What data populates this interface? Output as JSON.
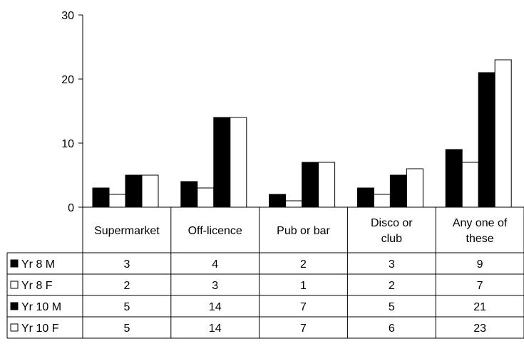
{
  "chart_data": {
    "type": "bar",
    "categories": [
      [
        "Supermarket"
      ],
      [
        "Off-licence"
      ],
      [
        "Pub or bar"
      ],
      [
        "Disco or",
        "club"
      ],
      [
        "Any one of",
        "these"
      ]
    ],
    "series": [
      {
        "name": "Yr 8 M",
        "fill": "#000000",
        "values": [
          3,
          4,
          2,
          3,
          9
        ]
      },
      {
        "name": "Yr 8 F",
        "fill": "#ffffff",
        "values": [
          2,
          3,
          1,
          2,
          7
        ]
      },
      {
        "name": "Yr 10 M",
        "fill": "#000000",
        "values": [
          5,
          14,
          7,
          5,
          21
        ]
      },
      {
        "name": "Yr 10 F",
        "fill": "#ffffff",
        "values": [
          5,
          14,
          7,
          6,
          23
        ]
      }
    ],
    "ylim": [
      0,
      30
    ],
    "yticks": [
      0,
      10,
      20,
      30
    ],
    "data_table": true,
    "grid": false
  }
}
